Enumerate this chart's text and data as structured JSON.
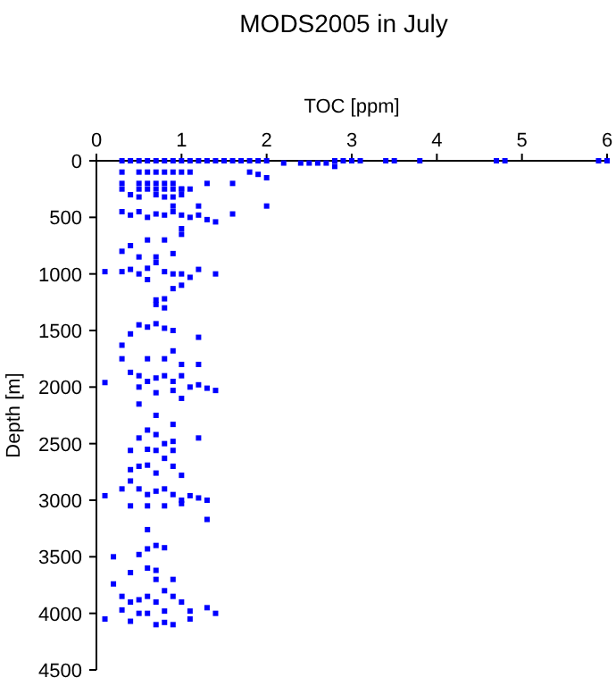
{
  "chart_data": {
    "type": "scatter",
    "title": "MODS2005 in July",
    "xlabel": "TOC [ppm]",
    "ylabel": "Depth [m]",
    "xlim": [
      0,
      6
    ],
    "xticks": [
      0,
      1,
      2,
      3,
      4,
      5,
      6
    ],
    "ylim": [
      4500,
      0
    ],
    "yticks": [
      0,
      500,
      1000,
      1500,
      2000,
      2500,
      3000,
      3500,
      4000,
      4500
    ],
    "grid": false,
    "marker": "square",
    "series": [
      {
        "color": "#0000ff",
        "x": [
          0.3,
          0.4,
          0.5,
          0.6,
          0.7,
          0.8,
          0.9,
          1.0,
          1.1,
          1.2,
          1.3,
          1.4,
          1.5,
          1.6,
          1.7,
          1.8,
          1.9,
          2.0,
          2.2,
          2.4,
          2.5,
          2.6,
          2.7,
          2.8,
          2.9,
          3.0,
          3.1,
          3.4,
          3.5,
          3.8,
          4.7,
          4.8,
          5.9,
          6.0,
          0.3,
          0.5,
          0.6,
          0.7,
          0.8,
          0.9,
          1.0,
          1.1,
          0.3,
          0.5,
          0.6,
          0.7,
          0.8,
          0.9,
          1.0,
          1.1,
          0.3,
          0.5,
          0.6,
          0.7,
          0.8,
          0.9,
          1.0,
          1.3,
          1.6,
          2.0,
          2.8,
          1.8,
          1.9,
          0.4,
          0.5,
          0.7,
          0.8,
          0.9,
          1.0,
          0.3,
          0.4,
          0.5,
          0.6,
          0.7,
          0.8,
          0.9,
          1.0,
          1.1,
          1.2,
          1.3,
          1.4,
          1.6,
          2.0,
          0.9,
          1.2,
          0.4,
          0.6,
          0.8,
          1.0,
          1.0,
          0.3,
          0.1,
          0.3,
          0.4,
          0.5,
          0.6,
          0.7,
          0.8,
          0.9,
          1.0,
          1.1,
          1.2,
          1.4,
          0.5,
          0.7,
          0.9,
          0.6,
          1.0,
          0.7,
          0.8,
          0.9,
          0.8,
          0.7,
          0.4,
          0.5,
          0.6,
          0.7,
          0.8,
          0.9,
          1.2,
          0.3,
          0.9,
          0.1,
          0.3,
          0.4,
          0.5,
          0.6,
          0.7,
          0.8,
          0.9,
          1.0,
          1.1,
          1.2,
          1.3,
          1.4,
          0.8,
          1.0,
          1.2,
          0.6,
          0.5,
          0.7,
          0.9,
          1.0,
          0.5,
          0.7,
          0.9,
          0.6,
          0.7,
          0.5,
          0.6,
          0.8,
          0.9,
          0.4,
          1.2,
          0.7,
          0.9,
          0.5,
          0.6,
          0.8,
          0.4,
          0.9,
          0.7,
          1.0,
          0.1,
          0.3,
          0.4,
          0.5,
          0.6,
          0.7,
          0.8,
          0.9,
          1.0,
          1.1,
          1.2,
          1.3,
          0.4,
          0.6,
          0.8,
          1.0,
          1.3,
          0.6,
          0.2,
          0.5,
          0.6,
          0.7,
          0.8,
          0.6,
          0.7,
          0.4,
          0.2,
          0.3,
          0.4,
          0.5,
          0.6,
          0.7,
          0.8,
          0.9,
          1.0,
          1.1,
          0.3,
          0.1,
          0.4,
          0.7,
          0.8,
          0.9,
          1.1,
          1.3,
          1.4,
          0.7,
          0.9,
          0.5,
          0.6,
          0.8
        ],
        "values": [
          0,
          0,
          0,
          0,
          0,
          0,
          0,
          0,
          0,
          0,
          0,
          0,
          0,
          0,
          0,
          0,
          0,
          0,
          20,
          20,
          20,
          20,
          20,
          0,
          0,
          0,
          0,
          0,
          0,
          0,
          0,
          0,
          0,
          0,
          100,
          100,
          100,
          100,
          100,
          100,
          100,
          100,
          200,
          200,
          200,
          200,
          200,
          200,
          250,
          250,
          250,
          250,
          250,
          250,
          250,
          250,
          250,
          200,
          200,
          150,
          50,
          100,
          120,
          300,
          320,
          300,
          320,
          320,
          300,
          450,
          480,
          450,
          500,
          470,
          480,
          450,
          480,
          500,
          480,
          520,
          540,
          470,
          400,
          400,
          400,
          750,
          700,
          700,
          650,
          600,
          800,
          980,
          980,
          960,
          1000,
          950,
          900,
          980,
          1000,
          1000,
          1030,
          960,
          1000,
          850,
          850,
          820,
          1050,
          1100,
          1230,
          1220,
          1130,
          1300,
          1270,
          1530,
          1450,
          1470,
          1440,
          1480,
          1500,
          1560,
          1630,
          1680,
          1960,
          1750,
          1870,
          1900,
          1950,
          1920,
          1900,
          1950,
          1900,
          2000,
          1980,
          2010,
          2030,
          1750,
          1800,
          1800,
          1750,
          2000,
          2050,
          2030,
          2100,
          2150,
          2250,
          2330,
          2380,
          2420,
          2450,
          2550,
          2500,
          2480,
          2560,
          2450,
          2560,
          2560,
          2700,
          2690,
          2630,
          2730,
          2700,
          2760,
          2780,
          2960,
          2900,
          2830,
          2900,
          2950,
          2920,
          2900,
          2950,
          3000,
          2960,
          2980,
          3000,
          3050,
          3050,
          3050,
          3030,
          3170,
          3260,
          3500,
          3480,
          3430,
          3400,
          3420,
          3600,
          3620,
          3640,
          3740,
          3850,
          3900,
          3880,
          3850,
          3900,
          3800,
          3850,
          3900,
          3980,
          3970,
          4050,
          4070,
          4100,
          4080,
          4100,
          4050,
          3950,
          4000,
          3700,
          3700,
          4000,
          4000,
          3980
        ]
      }
    ]
  }
}
